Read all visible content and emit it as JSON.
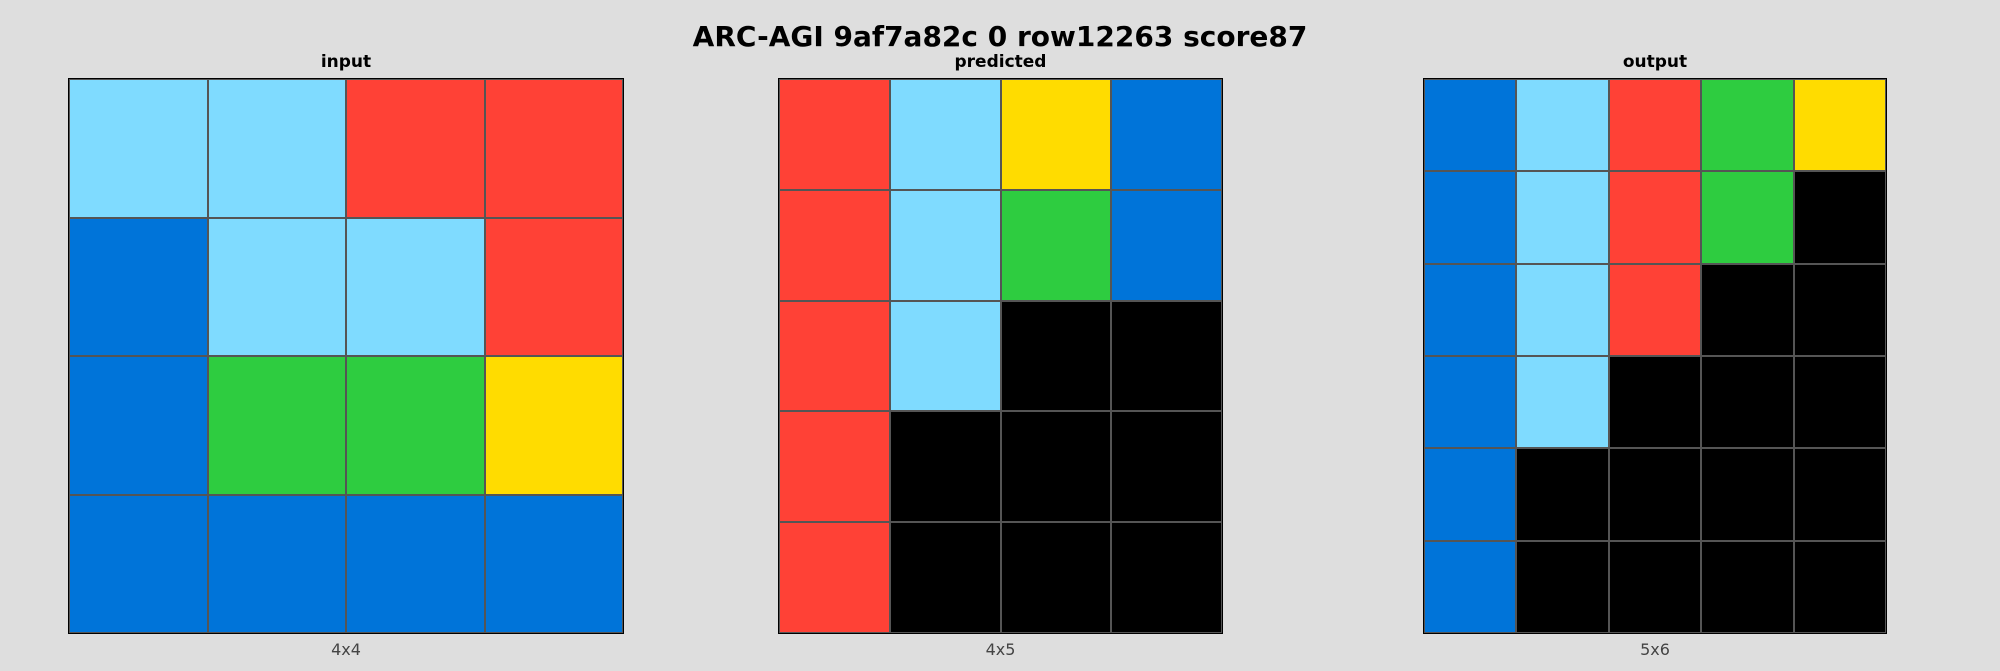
{
  "title": "ARC-AGI 9af7a82c 0 row12263 score87",
  "palette": {
    "0": "#000000",
    "1": "#0074D9",
    "2": "#FF4136",
    "3": "#2ECC40",
    "4": "#FFDC00",
    "8": "#7FDBFF"
  },
  "panels": [
    {
      "name": "input",
      "title": "input",
      "dims": "4x4",
      "grid": [
        [
          8,
          8,
          2,
          2
        ],
        [
          1,
          8,
          8,
          2
        ],
        [
          1,
          3,
          3,
          4
        ],
        [
          1,
          1,
          1,
          1
        ]
      ]
    },
    {
      "name": "predicted",
      "title": "predicted",
      "dims": "4x5",
      "grid": [
        [
          2,
          8,
          4,
          1
        ],
        [
          2,
          8,
          3,
          1
        ],
        [
          2,
          8,
          0,
          0
        ],
        [
          2,
          0,
          0,
          0
        ],
        [
          2,
          0,
          0,
          0
        ]
      ]
    },
    {
      "name": "output",
      "title": "output",
      "dims": "5x6",
      "grid": [
        [
          1,
          8,
          2,
          3,
          4
        ],
        [
          1,
          8,
          2,
          3,
          0
        ],
        [
          1,
          8,
          2,
          0,
          0
        ],
        [
          1,
          8,
          0,
          0,
          0
        ],
        [
          1,
          0,
          0,
          0,
          0
        ],
        [
          1,
          0,
          0,
          0,
          0
        ]
      ]
    }
  ]
}
